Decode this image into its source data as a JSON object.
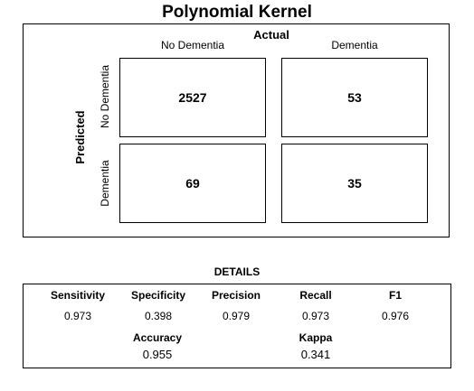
{
  "title": "Polynomial Kernel",
  "matrix": {
    "actual_label": "Actual",
    "predicted_label": "Predicted",
    "columns": [
      "No Dementia",
      "Dementia"
    ],
    "rows": [
      "No Dementia",
      "Dementia"
    ],
    "cells": [
      [
        "2527",
        "53"
      ],
      [
        "69",
        "35"
      ]
    ]
  },
  "details": {
    "title": "DETAILS",
    "top_metrics": [
      {
        "name": "Sensitivity",
        "value": "0.973"
      },
      {
        "name": "Specificity",
        "value": "0.398"
      },
      {
        "name": "Precision",
        "value": "0.979"
      },
      {
        "name": "Recall",
        "value": "0.973"
      },
      {
        "name": "F1",
        "value": "0.976"
      }
    ],
    "bottom_metrics": [
      {
        "name": "Accuracy",
        "value": "0.955"
      },
      {
        "name": "Kappa",
        "value": "0.341"
      }
    ]
  },
  "chart_data": {
    "type": "table",
    "title": "Polynomial Kernel",
    "xlabel": "Actual",
    "ylabel": "Predicted",
    "categories": [
      "No Dementia",
      "Dementia"
    ],
    "series": [
      {
        "name": "No Dementia",
        "values": [
          2527,
          53
        ]
      },
      {
        "name": "Dementia",
        "values": [
          69,
          35
        ]
      }
    ]
  }
}
